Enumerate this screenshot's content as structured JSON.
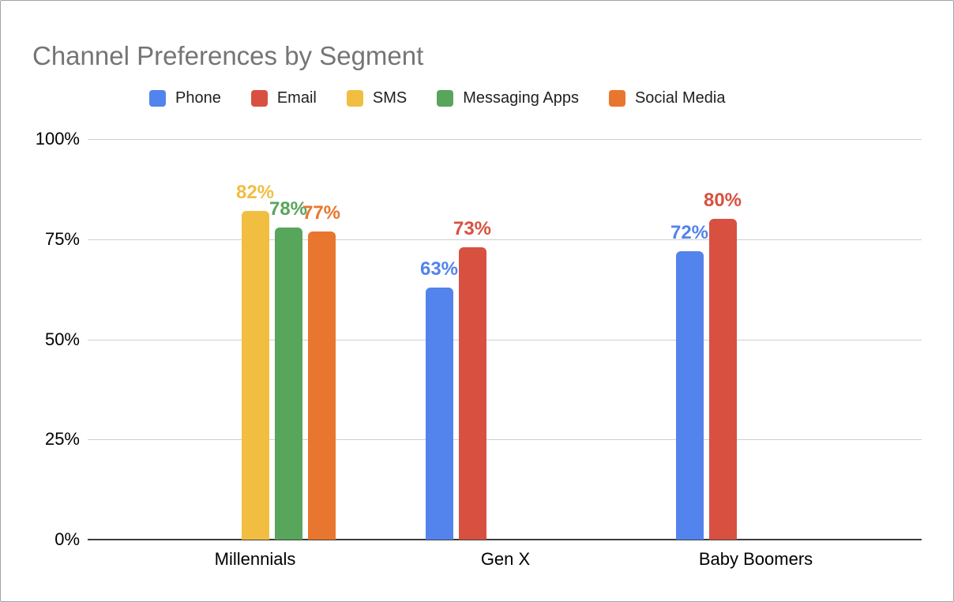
{
  "chart_data": {
    "type": "bar",
    "title": "Channel Preferences by Segment",
    "title_color": "#757575",
    "categories": [
      "Millennials",
      "Gen X",
      "Baby Boomers"
    ],
    "series": [
      {
        "name": "Phone",
        "color": "#5383EC",
        "values": [
          null,
          63,
          72
        ]
      },
      {
        "name": "Email",
        "color": "#D85140",
        "values": [
          null,
          73,
          80
        ]
      },
      {
        "name": "SMS",
        "color": "#F1BE42",
        "values": [
          82,
          null,
          null
        ]
      },
      {
        "name": "Messaging Apps",
        "color": "#58A55C",
        "values": [
          78,
          null,
          null
        ]
      },
      {
        "name": "Social Media",
        "color": "#E9762E",
        "values": [
          77,
          null,
          null
        ]
      }
    ],
    "data_label_format": "{value}%",
    "data_labels_visible": true,
    "y_axis": {
      "min": 0,
      "max": 100,
      "ticks": [
        "100%",
        "75%",
        "50%",
        "25%",
        "0%"
      ],
      "tick_values": [
        100,
        75,
        50,
        25,
        0
      ]
    },
    "grid": true,
    "gridline_color": "#cfcfcf",
    "axis_line_color": "#3d3d3d",
    "axis_text_color": "#000000",
    "legend_position": "top",
    "legend_text_color": "#212121"
  }
}
